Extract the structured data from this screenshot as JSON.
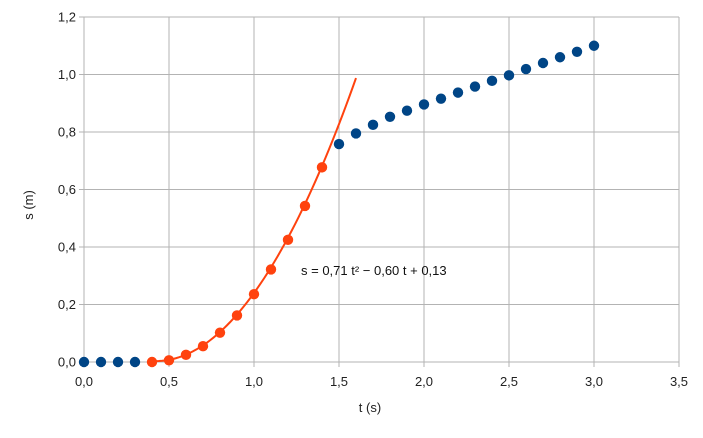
{
  "chart_data": {
    "type": "scatter",
    "xlabel": "t (s)",
    "ylabel": "s (m)",
    "xlim": [
      0,
      3.5
    ],
    "ylim": [
      0,
      1.2
    ],
    "xticks": [
      "0,0",
      "0,5",
      "1,0",
      "1,5",
      "2,0",
      "2,5",
      "3,0",
      "3,5"
    ],
    "yticks": [
      "0,0",
      "0,2",
      "0,4",
      "0,6",
      "0,8",
      "1,0",
      "1,2"
    ],
    "xtick_values": [
      0,
      0.5,
      1.0,
      1.5,
      2.0,
      2.5,
      3.0,
      3.5
    ],
    "ytick_values": [
      0,
      0.2,
      0.4,
      0.6,
      0.8,
      1.0,
      1.2
    ],
    "grid": true,
    "colors": {
      "blue": "#004586",
      "orange": "#ff420e",
      "grid": "#b3b3b3"
    },
    "series": [
      {
        "color": "#004586",
        "x": [
          0.0,
          0.1,
          0.2,
          0.3
        ],
        "y": [
          0.0,
          0.0,
          0.0,
          0.0
        ]
      },
      {
        "color": "#ff420e",
        "x": [
          0.4,
          0.5,
          0.6,
          0.7,
          0.8,
          0.9,
          1.0,
          1.1,
          1.2,
          1.3,
          1.4
        ],
        "y": [
          0.0,
          0.006,
          0.025,
          0.055,
          0.102,
          0.162,
          0.236,
          0.322,
          0.425,
          0.543,
          0.677
        ]
      },
      {
        "color": "#004586",
        "x": [
          1.5,
          1.6,
          1.7,
          1.8,
          1.9,
          2.0,
          2.1,
          2.2,
          2.3,
          2.4,
          2.5,
          2.6,
          2.7,
          2.8,
          2.9,
          3.0
        ],
        "y": [
          0.758,
          0.795,
          0.825,
          0.853,
          0.874,
          0.896,
          0.916,
          0.937,
          0.958,
          0.978,
          0.997,
          1.019,
          1.04,
          1.06,
          1.079,
          1.1
        ]
      }
    ],
    "trendline": {
      "color": "#ff420e",
      "a": 0.71,
      "b": -0.6,
      "c": 0.13,
      "x_range": [
        0.4,
        1.6
      ]
    },
    "annotation": "s = 0,71 t² − 0,60 t + 0,13"
  }
}
